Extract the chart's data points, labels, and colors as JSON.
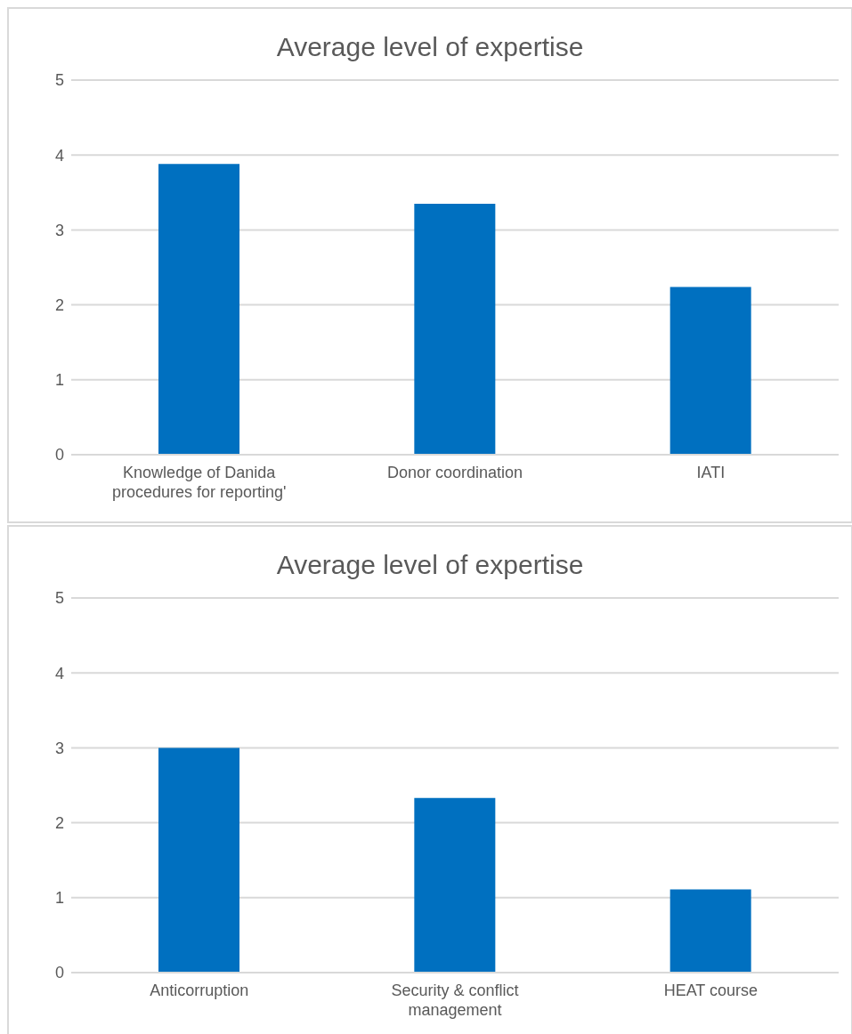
{
  "chart_data": [
    {
      "type": "bar",
      "title": "Average level of expertise",
      "categories": [
        "Knowledge of Danida procedures for reporting'",
        "Donor coordination",
        "IATI"
      ],
      "values": [
        3.88,
        3.35,
        2.24
      ],
      "color": "#0070c0",
      "ylim": [
        0,
        5
      ],
      "yticks": [
        0,
        1,
        2,
        3,
        4,
        5
      ],
      "grid": "y"
    },
    {
      "type": "bar",
      "title": "Average level of expertise",
      "categories": [
        "Anticorruption",
        "Security & conflict management",
        "HEAT course"
      ],
      "values": [
        3.0,
        2.33,
        1.11
      ],
      "color": "#0070c0",
      "ylim": [
        0,
        5
      ],
      "yticks": [
        0,
        1,
        2,
        3,
        4,
        5
      ],
      "grid": "y"
    }
  ]
}
